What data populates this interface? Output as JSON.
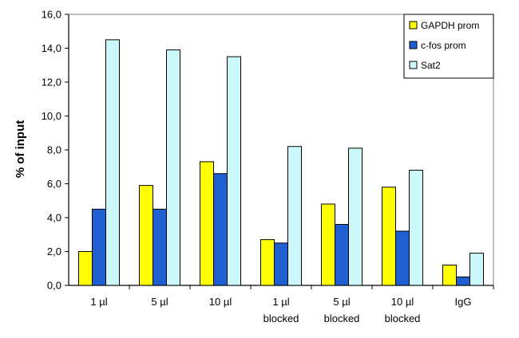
{
  "chart_data": {
    "type": "bar",
    "title": "",
    "xlabel": "",
    "ylabel": "% of input",
    "ylim": [
      0,
      16
    ],
    "yticks": [
      "0,0",
      "2,0",
      "4,0",
      "6,0",
      "8,0",
      "10,0",
      "12,0",
      "14,0",
      "16,0"
    ],
    "grid": false,
    "legend_position": "top-right",
    "categories": [
      [
        "1 µl"
      ],
      [
        "5 µl"
      ],
      [
        "10 µl"
      ],
      [
        "1 µl",
        "blocked"
      ],
      [
        "5 µl",
        "blocked"
      ],
      [
        "10 µl",
        "blocked"
      ],
      [
        "IgG"
      ]
    ],
    "series": [
      {
        "name": "GAPDH prom",
        "color": "#ffff00",
        "values": [
          2.0,
          5.9,
          7.3,
          2.7,
          4.8,
          5.8,
          1.2
        ]
      },
      {
        "name": "c-fos prom",
        "color": "#1f5fd0",
        "values": [
          4.5,
          4.5,
          6.6,
          2.5,
          3.6,
          3.2,
          0.5
        ]
      },
      {
        "name": "Sat2",
        "color": "#ccf7fb",
        "values": [
          14.5,
          13.9,
          13.5,
          8.2,
          8.1,
          6.8,
          1.9
        ]
      }
    ]
  }
}
